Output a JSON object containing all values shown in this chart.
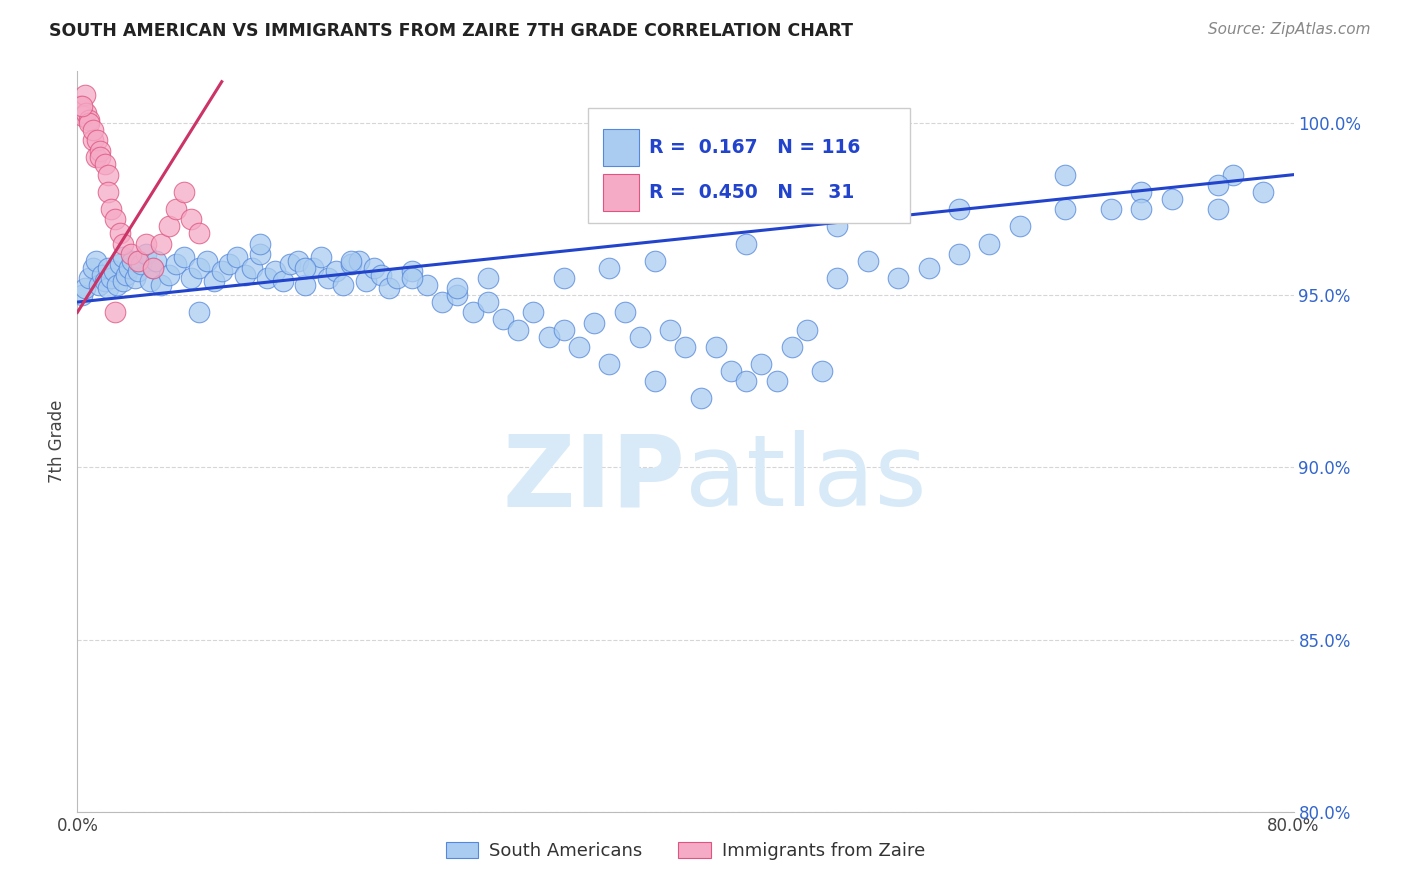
{
  "title": "SOUTH AMERICAN VS IMMIGRANTS FROM ZAIRE 7TH GRADE CORRELATION CHART",
  "source": "Source: ZipAtlas.com",
  "ylabel": "7th Grade",
  "xlim": [
    0.0,
    80.0
  ],
  "ylim": [
    80.0,
    101.5
  ],
  "yticks": [
    80.0,
    85.0,
    90.0,
    95.0,
    100.0
  ],
  "ytick_labels": [
    "80.0%",
    "85.0%",
    "90.0%",
    "95.0%",
    "100.0%"
  ],
  "xticks": [
    0.0,
    10.0,
    20.0,
    30.0,
    40.0,
    50.0,
    60.0,
    70.0,
    80.0
  ],
  "xtick_labels": [
    "0.0%",
    "",
    "",
    "",
    "",
    "",
    "",
    "",
    "80.0%"
  ],
  "blue_R": 0.167,
  "blue_N": 116,
  "pink_R": 0.45,
  "pink_N": 31,
  "blue_color": "#aaccf0",
  "pink_color": "#f5aac5",
  "blue_edge_color": "#5588dd",
  "pink_edge_color": "#dd5580",
  "blue_line_color": "#2244cc",
  "pink_line_color": "#cc3366",
  "watermark_zip": "ZIP",
  "watermark_atlas": "atlas",
  "watermark_color": "#d8eaf8",
  "blue_scatter_x": [
    0.3,
    0.5,
    0.8,
    1.0,
    1.2,
    1.4,
    1.6,
    1.8,
    2.0,
    2.0,
    2.2,
    2.4,
    2.6,
    2.8,
    3.0,
    3.0,
    3.2,
    3.4,
    3.6,
    3.8,
    4.0,
    4.2,
    4.5,
    4.8,
    5.0,
    5.2,
    5.5,
    6.0,
    6.5,
    7.0,
    7.5,
    8.0,
    8.5,
    9.0,
    9.5,
    10.0,
    10.5,
    11.0,
    11.5,
    12.0,
    12.5,
    13.0,
    13.5,
    14.0,
    14.5,
    15.0,
    15.5,
    16.0,
    16.5,
    17.0,
    17.5,
    18.0,
    18.5,
    19.0,
    19.5,
    20.0,
    20.5,
    21.0,
    22.0,
    23.0,
    24.0,
    25.0,
    26.0,
    27.0,
    28.0,
    29.0,
    30.0,
    31.0,
    32.0,
    33.0,
    34.0,
    35.0,
    36.0,
    37.0,
    38.0,
    39.0,
    40.0,
    41.0,
    42.0,
    43.0,
    44.0,
    45.0,
    46.0,
    47.0,
    48.0,
    49.0,
    50.0,
    52.0,
    54.0,
    56.0,
    58.0,
    60.0,
    62.0,
    65.0,
    68.0,
    70.0,
    72.0,
    75.0,
    76.0,
    78.0,
    8.0,
    12.0,
    18.0,
    22.0,
    27.0,
    32.0,
    38.0,
    44.0,
    50.0,
    58.0,
    65.0,
    70.0,
    75.0,
    15.0,
    25.0,
    35.0
  ],
  "blue_scatter_y": [
    95.0,
    95.2,
    95.5,
    95.8,
    96.0,
    95.3,
    95.6,
    95.4,
    95.8,
    95.2,
    95.5,
    95.7,
    95.3,
    95.9,
    96.1,
    95.4,
    95.6,
    95.8,
    96.0,
    95.5,
    95.7,
    95.9,
    96.2,
    95.4,
    95.8,
    96.0,
    95.3,
    95.6,
    95.9,
    96.1,
    95.5,
    95.8,
    96.0,
    95.4,
    95.7,
    95.9,
    96.1,
    95.6,
    95.8,
    96.2,
    95.5,
    95.7,
    95.4,
    95.9,
    96.0,
    95.3,
    95.8,
    96.1,
    95.5,
    95.7,
    95.3,
    95.9,
    96.0,
    95.4,
    95.8,
    95.6,
    95.2,
    95.5,
    95.7,
    95.3,
    94.8,
    95.0,
    94.5,
    94.8,
    94.3,
    94.0,
    94.5,
    93.8,
    94.0,
    93.5,
    94.2,
    93.0,
    94.5,
    93.8,
    92.5,
    94.0,
    93.5,
    92.0,
    93.5,
    92.8,
    92.5,
    93.0,
    92.5,
    93.5,
    94.0,
    92.8,
    95.5,
    96.0,
    95.5,
    95.8,
    96.2,
    96.5,
    97.0,
    97.5,
    97.5,
    98.0,
    97.8,
    97.5,
    98.5,
    98.0,
    94.5,
    96.5,
    96.0,
    95.5,
    95.5,
    95.5,
    96.0,
    96.5,
    97.0,
    97.5,
    98.5,
    97.5,
    98.2,
    95.8,
    95.2,
    95.8
  ],
  "pink_scatter_x": [
    0.2,
    0.4,
    0.5,
    0.6,
    0.8,
    0.8,
    1.0,
    1.0,
    1.2,
    1.3,
    1.5,
    1.5,
    1.8,
    2.0,
    2.0,
    2.2,
    2.5,
    2.8,
    3.0,
    3.5,
    4.0,
    4.5,
    5.0,
    5.5,
    6.0,
    6.5,
    7.0,
    7.5,
    8.0,
    0.3,
    2.5
  ],
  "pink_scatter_y": [
    100.5,
    100.2,
    100.8,
    100.3,
    100.1,
    100.0,
    99.5,
    99.8,
    99.0,
    99.5,
    99.2,
    99.0,
    98.8,
    98.5,
    98.0,
    97.5,
    97.2,
    96.8,
    96.5,
    96.2,
    96.0,
    96.5,
    95.8,
    96.5,
    97.0,
    97.5,
    98.0,
    97.2,
    96.8,
    100.5,
    94.5
  ],
  "blue_trend_x": [
    0.0,
    80.0
  ],
  "blue_trend_y": [
    94.8,
    98.5
  ],
  "pink_trend_x": [
    0.0,
    9.5
  ],
  "pink_trend_y": [
    94.5,
    101.2
  ]
}
